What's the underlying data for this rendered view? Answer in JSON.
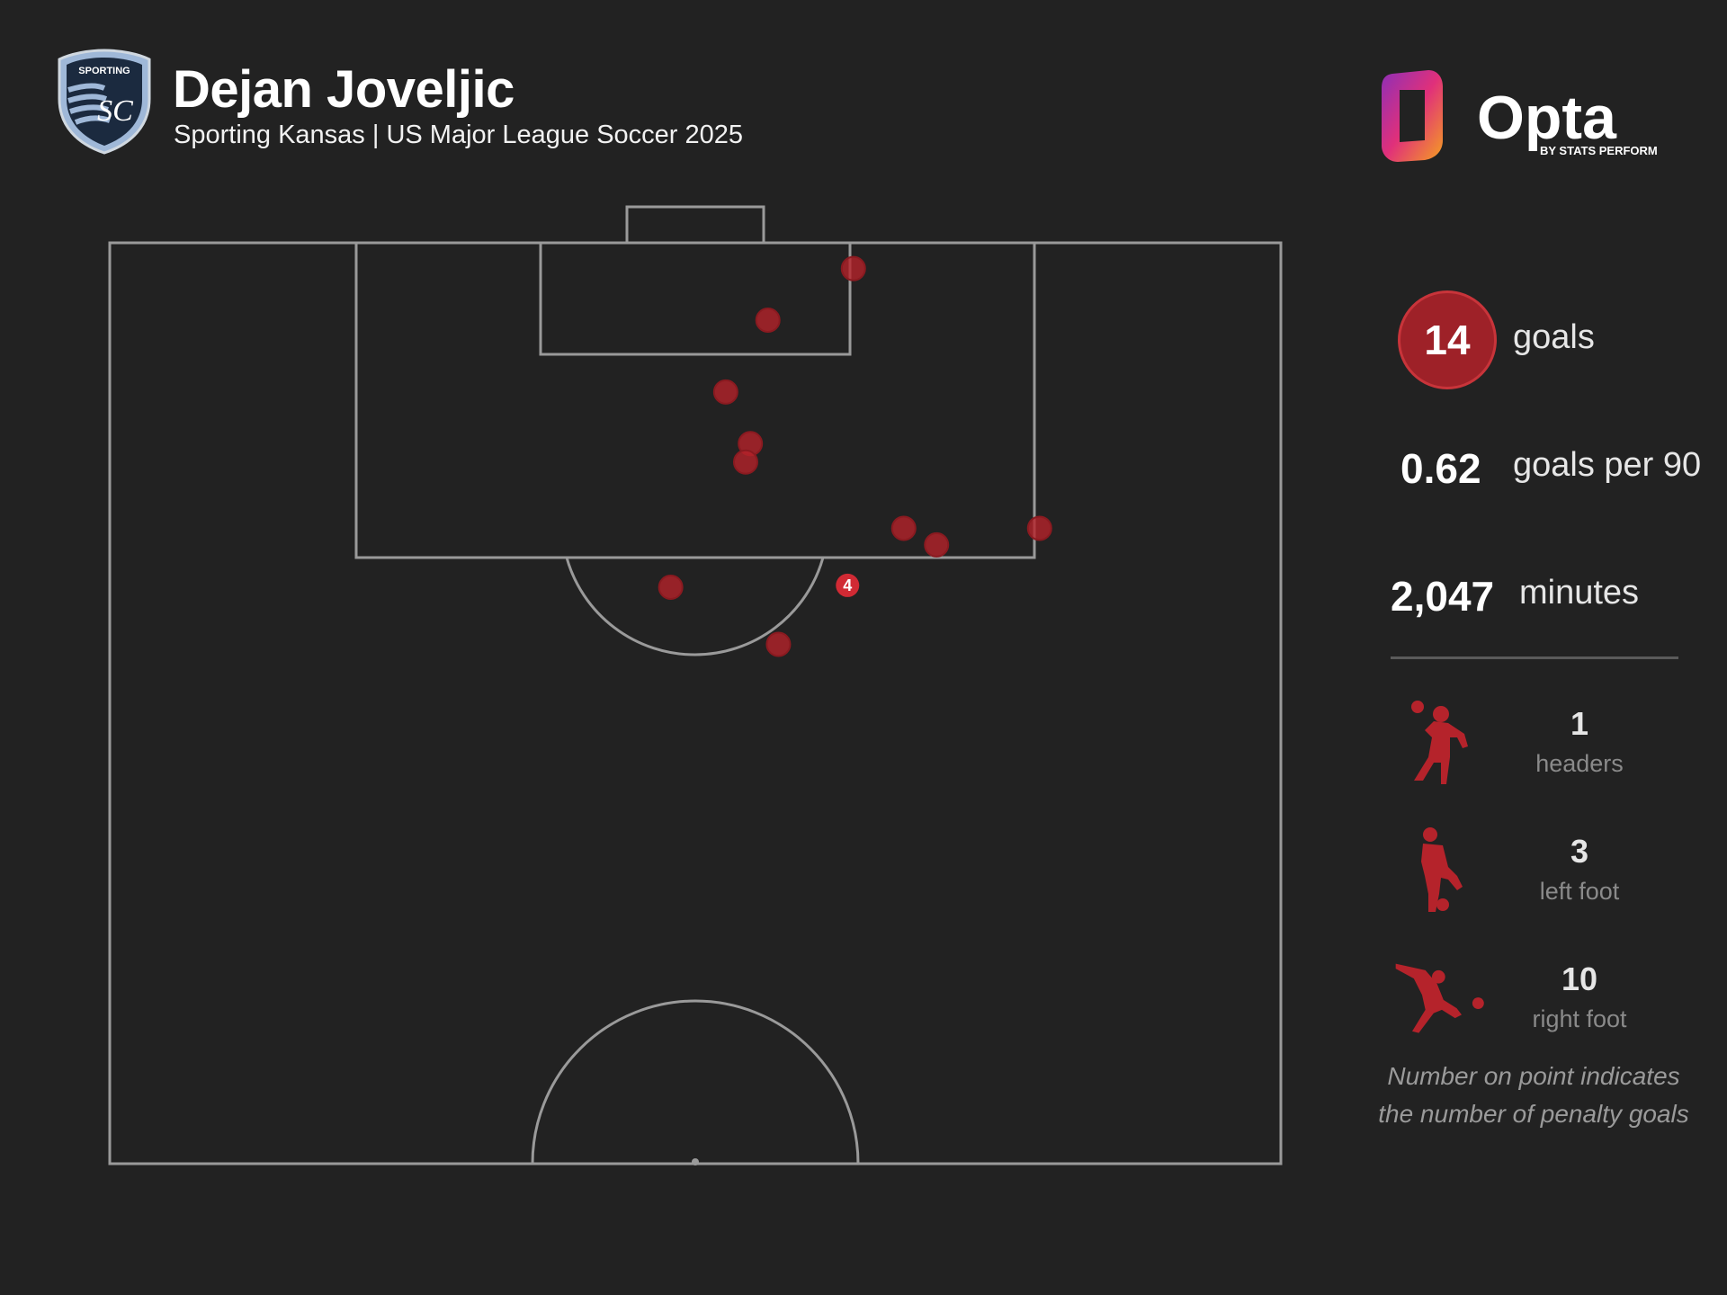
{
  "header": {
    "player_name": "Dejan Joveljic",
    "subtitle": "Sporting Kansas | US Major League Soccer 2025",
    "crest_text": "SPORTING",
    "crest_monogram": "SC"
  },
  "brand": {
    "name": "Opta",
    "tagline": "BY STATS PERFORM"
  },
  "stats": {
    "goals_value": "14",
    "goals_label": "goals",
    "per90_value": "0.62",
    "per90_label": "goals per 90",
    "minutes_value": "2,047",
    "minutes_label": "minutes"
  },
  "goal_types": [
    {
      "icon": "header-icon",
      "value": "1",
      "label": "headers"
    },
    {
      "icon": "left-foot-icon",
      "value": "3",
      "label": "left foot"
    },
    {
      "icon": "right-foot-icon",
      "value": "10",
      "label": "right foot"
    }
  ],
  "footnote": {
    "line1": "Number on point indicates",
    "line2": "the number of penalty goals"
  },
  "shots": [
    {
      "x": 63.5,
      "y": 98.6
    },
    {
      "x": 56.2,
      "y": 95.8
    },
    {
      "x": 52.6,
      "y": 91.9
    },
    {
      "x": 54.7,
      "y": 89.1
    },
    {
      "x": 54.3,
      "y": 88.1
    },
    {
      "x": 67.8,
      "y": 84.5
    },
    {
      "x": 70.6,
      "y": 83.6
    },
    {
      "x": 79.4,
      "y": 84.5
    },
    {
      "x": 47.9,
      "y": 81.3
    },
    {
      "x": 57.1,
      "y": 78.2
    },
    {
      "x": 63.0,
      "y": 81.4,
      "penalty_goals": 4
    }
  ],
  "colors": {
    "background": "#222222",
    "lines": "#9a9a9a",
    "shot": "#b5232b",
    "accent": "#c8343a"
  }
}
